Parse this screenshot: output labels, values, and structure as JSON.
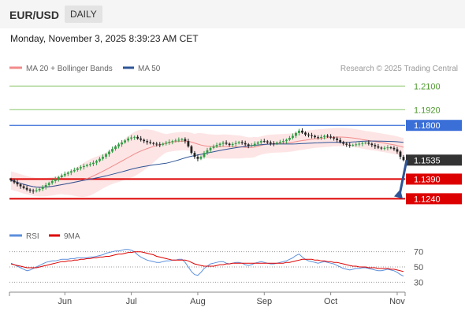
{
  "header": {
    "symbol": "EUR/USD",
    "period": "DAILY"
  },
  "datetime": "Monday, November 3, 2025 8:39:23 AM CET",
  "colors": {
    "candle_up": "#2e9e44",
    "candle_down": "#222222",
    "ma20": "#f28b8b",
    "band_fill": "#fde0e0",
    "ma50": "#2f5597",
    "support": "#dd0000",
    "resistance_green": "#8cc56b",
    "resistance_blue": "#3a6fd8",
    "rsi": "#5c8fdc",
    "rsi_ma": "#dd0000",
    "arrow": "#2f5597",
    "current_price": "#333333"
  },
  "chart_data": [
    {
      "type": "candlestick",
      "title": "",
      "legend": [
        {
          "label": "MA 20 + Bollinger Bands",
          "color": "#f28b8b"
        },
        {
          "label": "MA 50",
          "color": "#2f5597"
        }
      ],
      "legend_position": "top-left",
      "credit": "Research © 2025 Trading Central",
      "ylim": [
        1.105,
        1.218
      ],
      "grid": false,
      "x_tick_labels": [
        "Jun",
        "Jul",
        "Aug",
        "Sep",
        "Oct",
        "Nov"
      ],
      "x_tick_index": [
        17,
        38,
        59,
        80,
        101,
        122
      ],
      "num_periods": 125,
      "closes": [
        1.138,
        1.1365,
        1.135,
        1.1335,
        1.1322,
        1.131,
        1.1302,
        1.1298,
        1.1305,
        1.1315,
        1.133,
        1.1345,
        1.136,
        1.1375,
        1.139,
        1.1405,
        1.1418,
        1.143,
        1.144,
        1.145,
        1.146,
        1.1472,
        1.1482,
        1.149,
        1.1498,
        1.1505,
        1.1515,
        1.1528,
        1.1545,
        1.156,
        1.158,
        1.16,
        1.162,
        1.164,
        1.1655,
        1.167,
        1.1685,
        1.17,
        1.1708,
        1.1712,
        1.17,
        1.169,
        1.168,
        1.1672,
        1.1665,
        1.166,
        1.1655,
        1.1652,
        1.166,
        1.1668,
        1.1675,
        1.168,
        1.1685,
        1.169,
        1.1695,
        1.168,
        1.164,
        1.159,
        1.156,
        1.1545,
        1.156,
        1.159,
        1.161,
        1.1628,
        1.164,
        1.165,
        1.166,
        1.1668,
        1.166,
        1.165,
        1.1658,
        1.1665,
        1.1672,
        1.1665,
        1.1655,
        1.1645,
        1.165,
        1.166,
        1.167,
        1.168,
        1.1678,
        1.167,
        1.1662,
        1.166,
        1.1668,
        1.1675,
        1.168,
        1.169,
        1.1705,
        1.172,
        1.1742,
        1.176,
        1.1745,
        1.173,
        1.1725,
        1.172,
        1.171,
        1.1705,
        1.1712,
        1.172,
        1.1715,
        1.1708,
        1.17,
        1.1688,
        1.1672,
        1.166,
        1.1652,
        1.1648,
        1.165,
        1.1655,
        1.166,
        1.1665,
        1.1668,
        1.166,
        1.165,
        1.164,
        1.163,
        1.1625,
        1.1628,
        1.1632,
        1.1628,
        1.1618,
        1.16,
        1.156,
        1.1535
      ],
      "levels": [
        {
          "label": "1.2100",
          "value": 1.21,
          "style": "resistance-green"
        },
        {
          "label": "1.1920",
          "value": 1.192,
          "style": "resistance-green"
        },
        {
          "label": "1.1800",
          "value": 1.18,
          "style": "resistance-blue"
        },
        {
          "label": "1.1535",
          "value": 1.1535,
          "style": "current"
        },
        {
          "label": "1.1390",
          "value": 1.139,
          "style": "support"
        },
        {
          "label": "1.1240",
          "value": 1.124,
          "style": "support"
        }
      ],
      "forecast_arrow": {
        "from": 1.1535,
        "to": 1.124
      }
    },
    {
      "type": "line",
      "title": "",
      "legend": [
        {
          "label": "RSI",
          "color": "#5c8fdc"
        },
        {
          "label": "9MA",
          "color": "#dd0000"
        }
      ],
      "ylim": [
        20,
        80
      ],
      "y_tick_labels": [
        "70",
        "50",
        "30"
      ],
      "y_tick_values": [
        70,
        50,
        30
      ],
      "reference_lines": [
        70,
        50,
        30
      ],
      "series": [
        {
          "name": "RSI",
          "values": [
            55,
            53,
            51,
            49,
            47,
            45,
            46,
            48,
            50,
            52,
            54,
            56,
            57,
            58,
            58,
            59,
            60,
            60,
            60,
            61,
            61,
            62,
            62,
            62,
            62,
            63,
            63,
            64,
            65,
            66,
            68,
            69,
            70,
            71,
            71,
            72,
            73,
            73,
            72,
            70,
            66,
            63,
            61,
            59,
            58,
            57,
            56,
            56,
            57,
            58,
            58,
            59,
            59,
            60,
            60,
            56,
            50,
            44,
            40,
            39,
            43,
            48,
            51,
            54,
            55,
            56,
            57,
            57,
            55,
            54,
            55,
            56,
            56,
            55,
            53,
            52,
            53,
            55,
            56,
            57,
            56,
            55,
            54,
            54,
            55,
            56,
            57,
            58,
            60,
            62,
            65,
            67,
            63,
            60,
            58,
            57,
            56,
            55,
            56,
            57,
            56,
            55,
            54,
            52,
            50,
            48,
            47,
            46,
            47,
            48,
            48,
            49,
            49,
            48,
            47,
            46,
            45,
            45,
            46,
            47,
            46,
            45,
            43,
            40,
            38
          ]
        },
        {
          "name": "9MA",
          "values": [
            54,
            53,
            52,
            51,
            50,
            49,
            49,
            49,
            49,
            50,
            51,
            52,
            53,
            54,
            55,
            56,
            57,
            57,
            58,
            58,
            59,
            59,
            60,
            60,
            61,
            61,
            62,
            62,
            63,
            63,
            64,
            64,
            65,
            66,
            67,
            67,
            68,
            69,
            69,
            70,
            70,
            70,
            69,
            68,
            67,
            66,
            64,
            63,
            62,
            61,
            60,
            59,
            59,
            59,
            59,
            59,
            58,
            56,
            54,
            53,
            52,
            51,
            51,
            51,
            51,
            52,
            53,
            53,
            54,
            54,
            55,
            55,
            55,
            55,
            55,
            55,
            55,
            55,
            55,
            55,
            55,
            55,
            55,
            55,
            55,
            55,
            55,
            56,
            56,
            57,
            58,
            59,
            60,
            60,
            60,
            60,
            59,
            59,
            58,
            58,
            57,
            57,
            56,
            56,
            55,
            54,
            53,
            52,
            51,
            51,
            50,
            50,
            50,
            49,
            49,
            49,
            48,
            48,
            48,
            48,
            47,
            47,
            46,
            45,
            44
          ]
        }
      ]
    }
  ]
}
